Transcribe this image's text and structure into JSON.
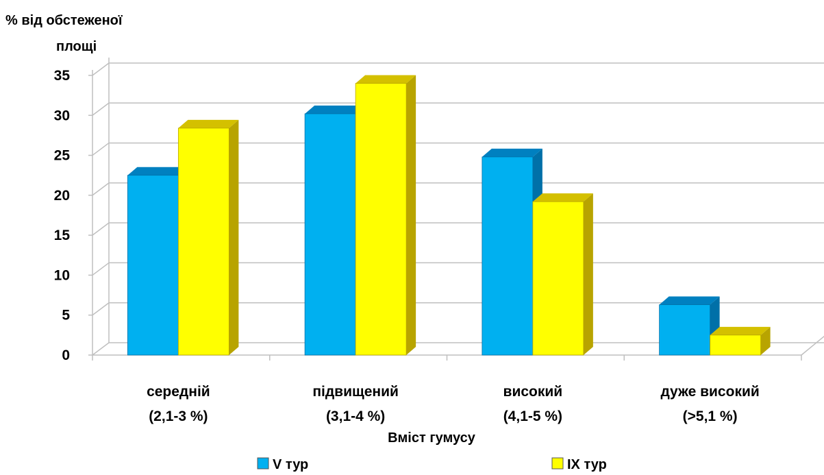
{
  "chart_data": {
    "type": "bar",
    "ylabel_lines": [
      "% від обстеженої",
      "площі"
    ],
    "xlabel": "Вміст гумусу",
    "categories": [
      [
        "середній",
        "(2,1-3 %)"
      ],
      [
        "підвищений",
        "(3,1-4 %)"
      ],
      [
        "високий",
        "(4,1-5 %)"
      ],
      [
        "дуже високий",
        "(>5,1 %)"
      ]
    ],
    "series": [
      {
        "name": "V тур",
        "values": [
          22.5,
          30.2,
          24.8,
          6.3
        ],
        "color": "#00B0F0",
        "top_color": "#0080C0",
        "side_color": "#0070A8"
      },
      {
        "name": "IX тур",
        "values": [
          28.4,
          34.0,
          19.2,
          2.5
        ],
        "color": "#FFFF00",
        "top_color": "#D4C000",
        "side_color": "#B8A400"
      }
    ],
    "ylim": [
      0,
      35
    ],
    "yticks": [
      "0",
      "5",
      "10",
      "15",
      "20",
      "25",
      "30",
      "35"
    ],
    "grid": true,
    "legend_position": "bottom"
  }
}
